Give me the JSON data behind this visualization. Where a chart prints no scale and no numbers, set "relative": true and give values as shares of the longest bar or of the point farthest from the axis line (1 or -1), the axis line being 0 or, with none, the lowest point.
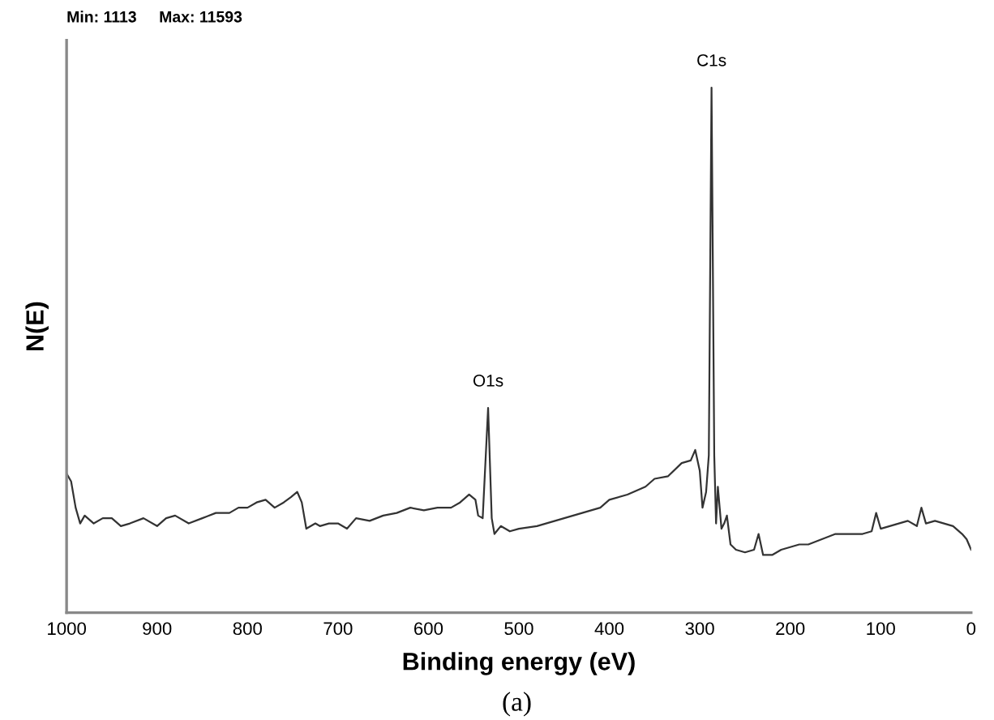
{
  "chart_data": {
    "type": "line",
    "relative": true,
    "xlabel": "Binding energy (eV)",
    "ylabel": "N(E)",
    "xlim": [
      1000,
      0
    ],
    "xticks": [
      1000,
      900,
      800,
      700,
      600,
      500,
      400,
      300,
      200,
      100,
      0
    ],
    "annotations": [
      "Min: 1113",
      "Max: 11593",
      {
        "text": "O1s",
        "x": 534,
        "y": 0.39
      },
      {
        "text": "C1s",
        "x": 287,
        "y": 1.0
      },
      "(a)"
    ],
    "grid": false,
    "legend": false,
    "marker": "none",
    "line_style": "solid",
    "series": [
      {
        "color": "#333333",
        "x": [
          1000,
          995,
          990,
          985,
          980,
          970,
          960,
          950,
          940,
          930,
          915,
          900,
          890,
          880,
          865,
          850,
          835,
          820,
          810,
          800,
          790,
          780,
          770,
          760,
          752,
          745,
          740,
          735,
          725,
          720,
          710,
          700,
          690,
          680,
          665,
          650,
          635,
          620,
          605,
          590,
          575,
          565,
          555,
          548,
          545,
          540,
          534,
          530,
          527,
          520,
          510,
          500,
          480,
          460,
          450,
          430,
          410,
          400,
          380,
          360,
          350,
          335,
          320,
          310,
          305,
          300,
          297,
          293,
          290,
          287,
          284,
          282,
          280,
          278,
          276,
          273,
          270,
          266,
          260,
          250,
          240,
          235,
          230,
          220,
          210,
          200,
          190,
          180,
          165,
          150,
          135,
          120,
          110,
          105,
          100,
          90,
          80,
          70,
          60,
          55,
          50,
          40,
          30,
          20,
          10,
          5,
          0
        ],
        "values": [
          0.265,
          0.25,
          0.2,
          0.17,
          0.185,
          0.17,
          0.18,
          0.18,
          0.165,
          0.17,
          0.18,
          0.165,
          0.18,
          0.185,
          0.17,
          0.18,
          0.19,
          0.19,
          0.2,
          0.2,
          0.21,
          0.215,
          0.2,
          0.21,
          0.22,
          0.23,
          0.21,
          0.16,
          0.17,
          0.165,
          0.17,
          0.17,
          0.16,
          0.18,
          0.175,
          0.185,
          0.19,
          0.2,
          0.195,
          0.2,
          0.2,
          0.21,
          0.225,
          0.215,
          0.185,
          0.18,
          0.39,
          0.18,
          0.15,
          0.165,
          0.155,
          0.16,
          0.165,
          0.175,
          0.18,
          0.19,
          0.2,
          0.215,
          0.225,
          0.24,
          0.255,
          0.26,
          0.285,
          0.29,
          0.31,
          0.27,
          0.2,
          0.23,
          0.3,
          1.0,
          0.3,
          0.17,
          0.24,
          0.2,
          0.16,
          0.17,
          0.185,
          0.13,
          0.12,
          0.115,
          0.12,
          0.15,
          0.11,
          0.11,
          0.12,
          0.125,
          0.13,
          0.13,
          0.14,
          0.15,
          0.15,
          0.15,
          0.155,
          0.19,
          0.16,
          0.165,
          0.17,
          0.175,
          0.165,
          0.2,
          0.17,
          0.175,
          0.17,
          0.165,
          0.15,
          0.14,
          0.12
        ]
      }
    ]
  }
}
